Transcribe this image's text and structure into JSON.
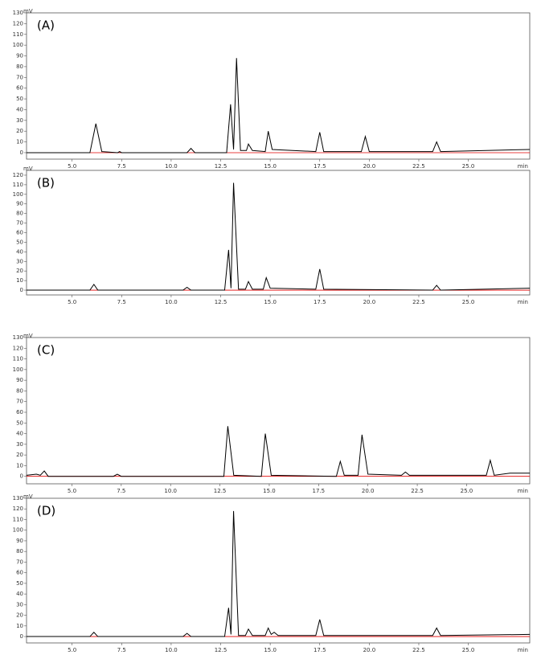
{
  "chart_data": [
    {
      "type": "line",
      "title": "(A)",
      "ylabel": "mV",
      "xlabel": "min",
      "xlim": [
        2.7,
        28.1
      ],
      "ylim": [
        -6,
        130
      ],
      "xticks": [
        {
          "value": 5,
          "label": "5.0"
        },
        7.5,
        {
          "value": 10,
          "label": "10.0"
        },
        12.5,
        {
          "value": 15,
          "label": "15.0"
        },
        17.5,
        {
          "value": 20,
          "label": "20.0"
        },
        22.5,
        {
          "value": 25,
          "label": "25.0"
        }
      ],
      "yticks": [
        0,
        10,
        20,
        30,
        40,
        50,
        60,
        70,
        80,
        90,
        100,
        110,
        120,
        130
      ],
      "x": [
        2.7,
        5.9,
        6.2,
        6.5,
        7.3,
        7.4,
        7.5,
        10.8,
        11.0,
        11.2,
        12.8,
        13.0,
        13.15,
        13.3,
        13.5,
        13.8,
        13.9,
        14.1,
        14.75,
        14.9,
        15.1,
        17.3,
        17.5,
        17.7,
        19.6,
        19.8,
        20.0,
        23.2,
        23.4,
        23.6,
        28.1
      ],
      "series": [
        {
          "color": "#e00000",
          "values": [
            0,
            0,
            0,
            0,
            0,
            0,
            0,
            0,
            0,
            0,
            0,
            0,
            0,
            0,
            0,
            0,
            0,
            0,
            0,
            0,
            0,
            0,
            0,
            0,
            0,
            0,
            0,
            0,
            0,
            0,
            0
          ]
        },
        {
          "color": "#000000",
          "values": [
            0,
            0,
            27,
            1,
            0,
            1,
            0,
            0,
            4,
            0,
            0,
            45,
            3,
            88,
            2,
            2,
            8,
            2,
            1,
            20,
            3,
            1,
            19,
            1,
            1,
            15,
            1,
            1,
            10,
            1,
            3
          ]
        }
      ]
    },
    {
      "type": "line",
      "title": "(B)",
      "ylabel": "mV",
      "xlabel": "min",
      "xlim": [
        2.7,
        28.1
      ],
      "ylim": [
        -5,
        125
      ],
      "xticks": [
        {
          "value": 5,
          "label": "5.0"
        },
        7.5,
        {
          "value": 10,
          "label": "10.0"
        },
        12.5,
        {
          "value": 15,
          "label": "15.0"
        },
        17.5,
        {
          "value": 20,
          "label": "20.0"
        },
        22.5,
        {
          "value": 25,
          "label": "25.0"
        }
      ],
      "yticks": [
        0,
        10,
        20,
        30,
        40,
        50,
        60,
        70,
        80,
        90,
        100,
        110,
        120
      ],
      "x": [
        2.7,
        5.9,
        6.1,
        6.3,
        10.6,
        10.8,
        11.0,
        12.7,
        12.9,
        13.02,
        13.15,
        13.4,
        13.75,
        13.9,
        14.1,
        14.65,
        14.8,
        15.0,
        17.3,
        17.5,
        17.7,
        23.2,
        23.4,
        23.6,
        28.1
      ],
      "series": [
        {
          "color": "#e00000",
          "values": [
            0,
            0,
            0,
            0,
            0,
            0,
            0,
            0,
            0,
            0,
            0,
            0,
            0,
            0,
            0,
            0,
            0,
            0,
            0,
            0,
            0,
            0,
            0,
            0,
            0
          ]
        },
        {
          "color": "#000000",
          "values": [
            0,
            0,
            6,
            0,
            0,
            3,
            0,
            0,
            42,
            2,
            112,
            1,
            1,
            9,
            1,
            1,
            13,
            2,
            1,
            22,
            1,
            0,
            5,
            0,
            2
          ]
        }
      ]
    },
    {
      "type": "line",
      "title": "(C)",
      "ylabel": "mV",
      "xlabel": "min",
      "xlim": [
        2.7,
        28.2
      ],
      "ylim": [
        -7,
        130
      ],
      "xticks": [
        {
          "value": 5,
          "label": "5.0"
        },
        7.5,
        {
          "value": 10,
          "label": "10.0"
        },
        12.5,
        {
          "value": 15,
          "label": "15.0"
        },
        17.5,
        {
          "value": 20,
          "label": "20.0"
        },
        22.5,
        {
          "value": 25,
          "label": "25.0"
        }
      ],
      "yticks": [
        0,
        10,
        20,
        30,
        40,
        50,
        60,
        70,
        80,
        90,
        100,
        110,
        120,
        130
      ],
      "x": [
        2.7,
        3.2,
        3.4,
        3.6,
        3.8,
        7.1,
        7.3,
        7.5,
        12.7,
        12.9,
        13.2,
        14.6,
        14.8,
        15.1,
        18.4,
        18.6,
        18.8,
        19.5,
        19.7,
        20.0,
        21.7,
        21.9,
        22.1,
        26.0,
        26.2,
        26.4,
        27.2,
        28.2
      ],
      "series": [
        {
          "color": "#e00000",
          "values": [
            0,
            0,
            0,
            0,
            0,
            0,
            0,
            0,
            0,
            0,
            0,
            0,
            0,
            0,
            0,
            0,
            0,
            0,
            0,
            0,
            0,
            0,
            0,
            0,
            0,
            0,
            0,
            0
          ]
        },
        {
          "color": "#000000",
          "values": [
            1,
            2,
            1,
            5,
            0,
            0,
            2,
            0,
            0,
            47,
            1,
            0,
            40,
            1,
            0,
            14,
            1,
            1,
            39,
            2,
            1,
            4,
            1,
            1,
            15,
            1,
            3,
            3
          ]
        }
      ]
    },
    {
      "type": "line",
      "title": "(D)",
      "ylabel": "mV",
      "xlabel": "min",
      "xlim": [
        2.7,
        28.1
      ],
      "ylim": [
        -6,
        130
      ],
      "xticks": [
        {
          "value": 5,
          "label": "5.0"
        },
        7.5,
        {
          "value": 10,
          "label": "10.0"
        },
        12.5,
        {
          "value": 15,
          "label": "15.0"
        },
        17.5,
        {
          "value": 20,
          "label": "20.0"
        },
        22.5,
        {
          "value": 25,
          "label": "25.0"
        }
      ],
      "yticks": [
        0,
        10,
        20,
        30,
        40,
        50,
        60,
        70,
        80,
        90,
        100,
        110,
        120,
        130
      ],
      "x": [
        2.7,
        5.9,
        6.1,
        6.3,
        10.6,
        10.8,
        11.0,
        12.7,
        12.9,
        13.02,
        13.15,
        13.4,
        13.75,
        13.9,
        14.1,
        14.75,
        14.9,
        15.05,
        15.2,
        15.4,
        17.3,
        17.5,
        17.7,
        23.2,
        23.4,
        23.6,
        28.1
      ],
      "series": [
        {
          "color": "#e00000",
          "values": [
            0,
            0,
            0,
            0,
            0,
            0,
            0,
            0,
            0,
            0,
            0,
            0,
            0,
            0,
            0,
            0,
            0,
            0,
            0,
            0,
            0,
            0,
            0,
            0,
            0,
            0,
            0
          ]
        },
        {
          "color": "#000000",
          "values": [
            0,
            0,
            4,
            0,
            0,
            3,
            0,
            0,
            27,
            2,
            118,
            1,
            1,
            7,
            1,
            1,
            8,
            2,
            4,
            1,
            1,
            16,
            1,
            1,
            8,
            1,
            2
          ]
        }
      ]
    }
  ]
}
